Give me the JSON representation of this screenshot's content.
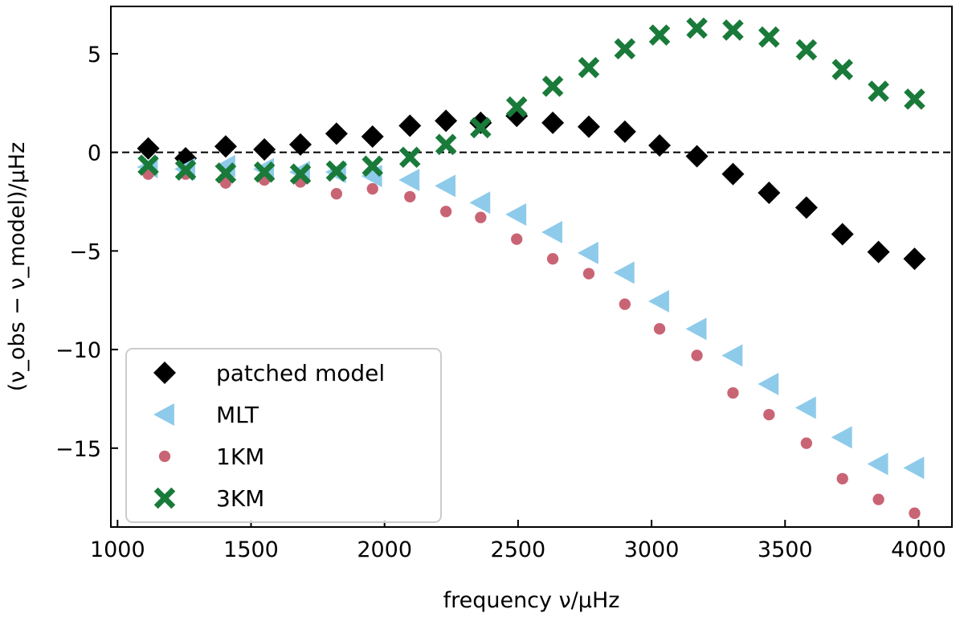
{
  "chart_data": {
    "type": "scatter",
    "xlabel": "frequency ν/μHz",
    "ylabel": "(ν_obs − ν_model)/μHz",
    "xlim": [
      975,
      4125
    ],
    "ylim": [
      -19,
      7.4
    ],
    "x_ticks": [
      1000,
      1500,
      2000,
      2500,
      3000,
      3500,
      4000
    ],
    "y_ticks": [
      5,
      0,
      -5,
      -10,
      -15
    ],
    "x_tick_labels": [
      "1000",
      "1500",
      "2000",
      "2500",
      "3000",
      "3500",
      "4000"
    ],
    "y_tick_labels": [
      "5",
      "0",
      "−5",
      "−10",
      "−15"
    ],
    "reference_line": {
      "y": 0,
      "style": "dashed"
    },
    "legend": {
      "position": "lower-left"
    },
    "series": [
      {
        "name": "patched model",
        "marker": "diamond",
        "color": "#000000",
        "points": [
          [
            1115,
            0.2
          ],
          [
            1255,
            -0.3
          ],
          [
            1405,
            0.3
          ],
          [
            1550,
            0.15
          ],
          [
            1685,
            0.4
          ],
          [
            1820,
            0.95
          ],
          [
            1955,
            0.8
          ],
          [
            2095,
            1.35
          ],
          [
            2230,
            1.6
          ],
          [
            2360,
            1.5
          ],
          [
            2495,
            1.85
          ],
          [
            2630,
            1.5
          ],
          [
            2765,
            1.3
          ],
          [
            2900,
            1.05
          ],
          [
            3030,
            0.35
          ],
          [
            3170,
            -0.2
          ],
          [
            3305,
            -1.1
          ],
          [
            3440,
            -2.05
          ],
          [
            3580,
            -2.8
          ],
          [
            3715,
            -4.15
          ],
          [
            3850,
            -5.05
          ],
          [
            3985,
            -5.4
          ]
        ]
      },
      {
        "name": "MLT",
        "marker": "triangle-left",
        "color": "#8ecbea",
        "points": [
          [
            1115,
            -0.75
          ],
          [
            1255,
            -0.85
          ],
          [
            1405,
            -0.7
          ],
          [
            1550,
            -0.85
          ],
          [
            1685,
            -1.0
          ],
          [
            1820,
            -1.0
          ],
          [
            1955,
            -1.2
          ],
          [
            2095,
            -1.4
          ],
          [
            2230,
            -1.7
          ],
          [
            2360,
            -2.55
          ],
          [
            2495,
            -3.15
          ],
          [
            2630,
            -4.05
          ],
          [
            2765,
            -5.1
          ],
          [
            2900,
            -6.1
          ],
          [
            3030,
            -7.55
          ],
          [
            3170,
            -8.95
          ],
          [
            3305,
            -10.3
          ],
          [
            3440,
            -11.75
          ],
          [
            3580,
            -12.95
          ],
          [
            3715,
            -14.45
          ],
          [
            3850,
            -15.8
          ],
          [
            3985,
            -16.0
          ]
        ]
      },
      {
        "name": "1KM",
        "marker": "circle",
        "color": "#c96474",
        "points": [
          [
            1115,
            -1.1
          ],
          [
            1255,
            -1.1
          ],
          [
            1405,
            -1.55
          ],
          [
            1550,
            -1.4
          ],
          [
            1685,
            -1.5
          ],
          [
            1820,
            -2.1
          ],
          [
            1955,
            -1.85
          ],
          [
            2095,
            -2.25
          ],
          [
            2230,
            -3.0
          ],
          [
            2360,
            -3.3
          ],
          [
            2495,
            -4.4
          ],
          [
            2630,
            -5.4
          ],
          [
            2765,
            -6.15
          ],
          [
            2900,
            -7.7
          ],
          [
            3030,
            -8.95
          ],
          [
            3170,
            -10.3
          ],
          [
            3305,
            -12.2
          ],
          [
            3440,
            -13.3
          ],
          [
            3580,
            -14.75
          ],
          [
            3715,
            -16.55
          ],
          [
            3850,
            -17.6
          ],
          [
            3985,
            -18.3
          ]
        ]
      },
      {
        "name": "3KM",
        "marker": "x",
        "color": "#197a3a",
        "points": [
          [
            1115,
            -0.65
          ],
          [
            1255,
            -0.9
          ],
          [
            1405,
            -1.05
          ],
          [
            1550,
            -1.0
          ],
          [
            1685,
            -1.1
          ],
          [
            1820,
            -0.95
          ],
          [
            1955,
            -0.7
          ],
          [
            2095,
            -0.25
          ],
          [
            2230,
            0.4
          ],
          [
            2360,
            1.25
          ],
          [
            2495,
            2.3
          ],
          [
            2630,
            3.35
          ],
          [
            2765,
            4.3
          ],
          [
            2900,
            5.25
          ],
          [
            3030,
            5.95
          ],
          [
            3170,
            6.3
          ],
          [
            3305,
            6.2
          ],
          [
            3440,
            5.85
          ],
          [
            3580,
            5.2
          ],
          [
            3715,
            4.2
          ],
          [
            3850,
            3.1
          ],
          [
            3985,
            2.7
          ]
        ]
      }
    ]
  }
}
